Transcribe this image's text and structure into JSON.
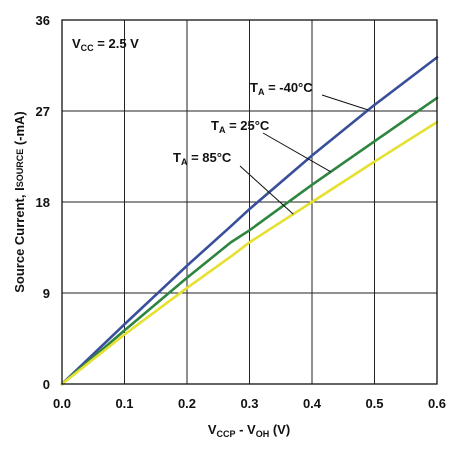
{
  "chart_data": {
    "type": "line",
    "xlabel_main": "V",
    "xlabel_sub1": "CCP",
    "xlabel_mid": " - V",
    "xlabel_sub2": "OH",
    "xlabel_unit": " (V)",
    "ylabel_main": "Source Current, I",
    "ylabel_sub": "SOURCE",
    "ylabel_unit": " (-mA)",
    "xlim": [
      0,
      0.6
    ],
    "ylim": [
      0,
      36
    ],
    "x_ticks": [
      "0.0",
      "0.1",
      "0.2",
      "0.3",
      "0.4",
      "0.5",
      "0.6"
    ],
    "y_ticks": [
      "0",
      "9",
      "18",
      "27",
      "36"
    ],
    "grid": true,
    "condition": {
      "main": "V",
      "sub": "CC",
      "rest": " = 2.5 V"
    },
    "series": [
      {
        "name": "T_A = -40°C",
        "label_main": "T",
        "label_sub": "A",
        "label_rest": " = -40°C",
        "color": "#3a4f9b",
        "x": [
          0,
          0.1,
          0.2,
          0.27,
          0.3,
          0.4,
          0.5,
          0.6
        ],
        "y": [
          0,
          5.9,
          11.7,
          15.6,
          17.3,
          22.6,
          27.6,
          32.3
        ]
      },
      {
        "name": "T_A = 25°C",
        "label_main": "T",
        "label_sub": "A",
        "label_rest": " = 25°C",
        "color": "#2e8540",
        "x": [
          0,
          0.1,
          0.2,
          0.27,
          0.3,
          0.4,
          0.5,
          0.6
        ],
        "y": [
          0,
          5.3,
          10.5,
          14.0,
          15.2,
          19.7,
          24.0,
          28.3
        ]
      },
      {
        "name": "T_A = 85°C",
        "label_main": "T",
        "label_sub": "A",
        "label_rest": " = 85°C",
        "color": "#e6e030",
        "x": [
          0,
          0.1,
          0.2,
          0.27,
          0.3,
          0.4,
          0.5,
          0.6
        ],
        "y": [
          0,
          4.9,
          9.5,
          12.6,
          14.0,
          18.0,
          22.0,
          25.9
        ]
      }
    ]
  }
}
